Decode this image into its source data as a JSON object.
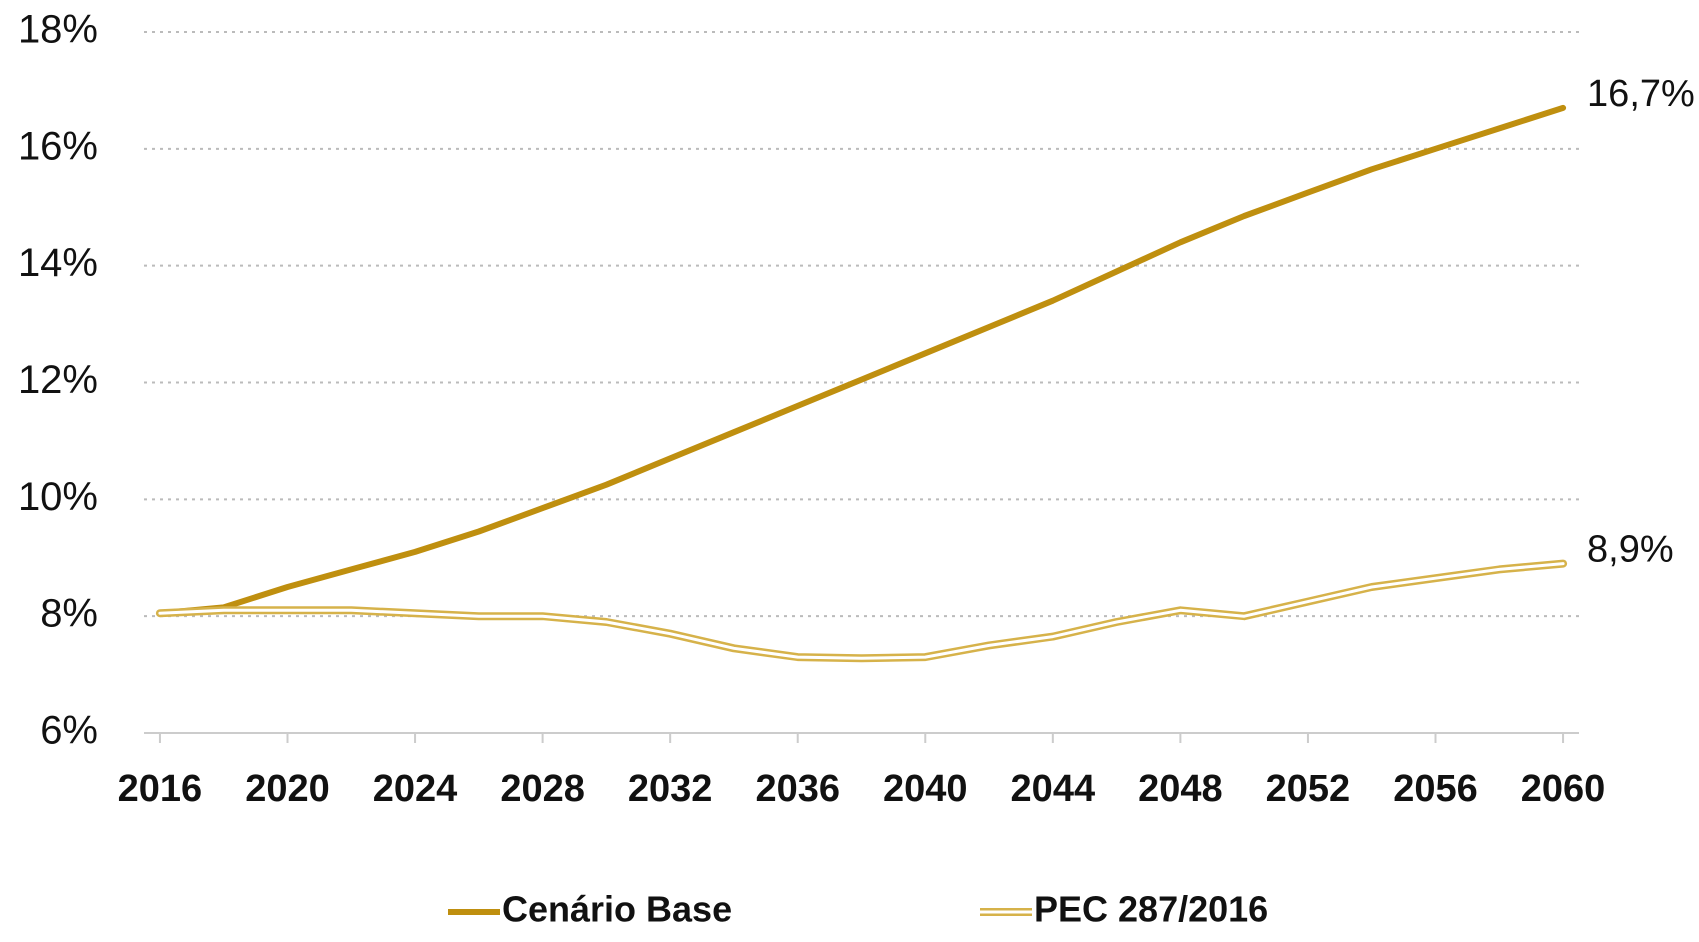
{
  "chart_data": {
    "type": "line",
    "x": [
      2016,
      2018,
      2020,
      2022,
      2024,
      2026,
      2028,
      2030,
      2032,
      2034,
      2036,
      2038,
      2040,
      2042,
      2044,
      2046,
      2048,
      2050,
      2052,
      2054,
      2056,
      2058,
      2060
    ],
    "series": [
      {
        "name": "Cenário Base",
        "color": "#bf8f0f",
        "style": "solid",
        "values": [
          8.05,
          8.15,
          8.5,
          8.8,
          9.1,
          9.45,
          9.85,
          10.25,
          10.7,
          11.15,
          11.6,
          12.05,
          12.5,
          12.95,
          13.4,
          13.9,
          14.4,
          14.85,
          15.25,
          15.65,
          16.0,
          16.35,
          16.7
        ],
        "value_labels": [
          null,
          null,
          null,
          null,
          null,
          null,
          null,
          null,
          null,
          null,
          null,
          null,
          null,
          null,
          null,
          null,
          null,
          null,
          null,
          null,
          null,
          null,
          "16,7%"
        ]
      },
      {
        "name": "PEC 287/2016",
        "color": "#d6b24a",
        "style": "double",
        "values": [
          8.05,
          8.1,
          8.1,
          8.1,
          8.05,
          8.0,
          8.0,
          7.9,
          7.7,
          7.45,
          7.3,
          7.28,
          7.3,
          7.5,
          7.65,
          7.9,
          8.1,
          8.0,
          8.25,
          8.5,
          8.65,
          8.8,
          8.9
        ],
        "value_labels": [
          null,
          null,
          null,
          null,
          null,
          null,
          null,
          null,
          null,
          null,
          null,
          null,
          null,
          null,
          null,
          null,
          null,
          null,
          null,
          null,
          null,
          null,
          "8,9%"
        ]
      }
    ],
    "xlim": [
      2015.5,
      2060.5
    ],
    "xticks": [
      2016,
      2020,
      2024,
      2028,
      2032,
      2036,
      2040,
      2044,
      2048,
      2052,
      2056,
      2060
    ],
    "ylim": [
      6,
      18
    ],
    "yticks": [
      {
        "value": 6,
        "label": "6%"
      },
      {
        "value": 8,
        "label": "8%"
      },
      {
        "value": 10,
        "label": "10%"
      },
      {
        "value": 12,
        "label": "12%"
      },
      {
        "value": 14,
        "label": "14%"
      },
      {
        "value": 16,
        "label": "16%"
      },
      {
        "value": 18,
        "label": "18%"
      }
    ],
    "grid": true,
    "legend": "bottom"
  }
}
